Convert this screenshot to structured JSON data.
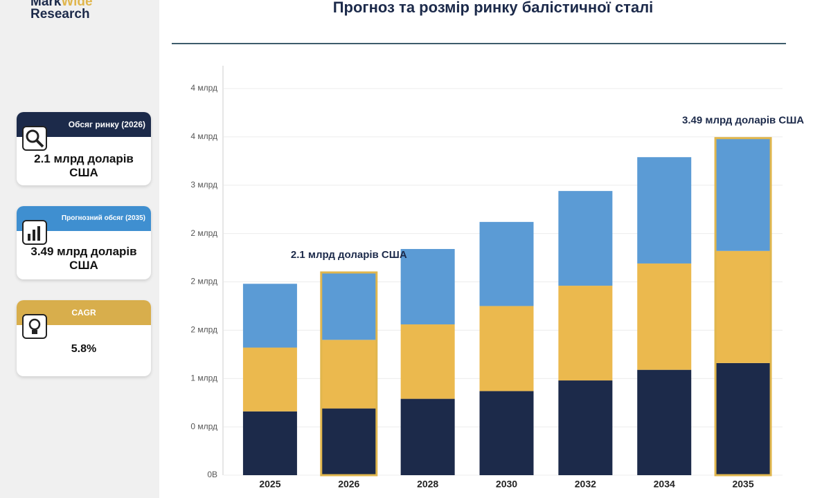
{
  "sidebar": {
    "logo": {
      "line1": "Mark",
      "line1b": "Wide",
      "line2": "Research"
    },
    "cards": [
      {
        "title": "Обсяг ринку (2026)",
        "value": "2.1 млрд доларів США"
      },
      {
        "title": "Прогнозний обсяг (2035)",
        "value": "3.49 млрд доларів США"
      },
      {
        "title": "CAGR",
        "value": "5.8%"
      }
    ]
  },
  "chart_data": {
    "type": "stacked_bar",
    "title": "Прогноз та розмір ринку балістичної сталі",
    "categories": [
      "2025",
      "2026",
      "2028",
      "2030",
      "2032",
      "2034",
      "2035"
    ],
    "series": [
      {
        "color": "#1c2a4a",
        "values": [
          0.66,
          0.69,
          0.79,
          0.87,
          0.98,
          1.09,
          1.16
        ]
      },
      {
        "color": "#ebb94e",
        "values": [
          0.66,
          0.71,
          0.77,
          0.88,
          0.98,
          1.1,
          1.16
        ]
      },
      {
        "color": "#5b9bd5",
        "values": [
          0.66,
          0.69,
          0.78,
          0.87,
          0.98,
          1.1,
          1.16
        ]
      }
    ],
    "ylim": [
      0,
      4
    ],
    "yticks": [
      {
        "value": 0,
        "label": "0В"
      },
      {
        "value": 0.5,
        "label": "0 млрд"
      },
      {
        "value": 1,
        "label": "1 млрд"
      },
      {
        "value": 1.5,
        "label": "2 млрд"
      },
      {
        "value": 2,
        "label": "2 млрд"
      },
      {
        "value": 2.5,
        "label": "2 млрд"
      },
      {
        "value": 3,
        "label": "3 млрд"
      },
      {
        "value": 3.5,
        "label": "4 млрд"
      },
      {
        "value": 4,
        "label": "4 млрд"
      }
    ],
    "grid": true,
    "highlight_color": "#e0b64d",
    "annotations": [
      {
        "text": "2.1 млрд доларів США",
        "x": "2026"
      },
      {
        "text": "3.49 млрд доларів США",
        "x": "2035"
      }
    ]
  }
}
